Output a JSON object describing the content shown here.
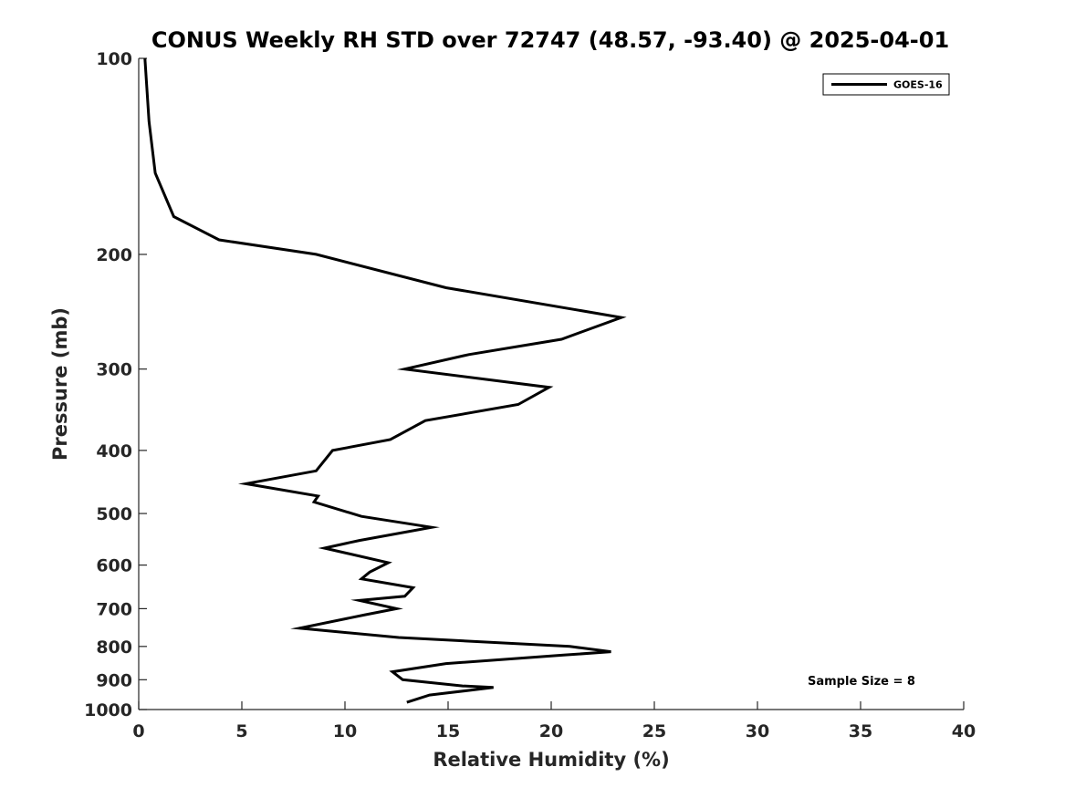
{
  "chart_data": {
    "type": "line",
    "title": "CONUS Weekly RH STD over 72747 (48.57, -93.40) @ 2025-04-01",
    "xlabel": "Relative Humidity (%)",
    "ylabel": "Pressure (mb)",
    "xlim": [
      0,
      40
    ],
    "ylim": [
      100,
      1000
    ],
    "y_scale": "log",
    "y_inverted": true,
    "x_ticks": [
      "0",
      "5",
      "10",
      "15",
      "20",
      "25",
      "30",
      "35",
      "40"
    ],
    "y_ticks": [
      "100",
      "200",
      "300",
      "400",
      "500",
      "600",
      "700",
      "800",
      "900",
      "1000"
    ],
    "grid": false,
    "legend_position": "top-right",
    "series": [
      {
        "name": "GOES-16",
        "color": "#000000",
        "x": [
          0.3,
          0.5,
          0.8,
          1.7,
          3.9,
          8.6,
          14.9,
          23.4,
          20.5,
          16.0,
          12.9,
          19.9,
          18.4,
          13.9,
          12.2,
          9.4,
          8.6,
          5.2,
          8.7,
          8.5,
          10.8,
          14.2,
          10.7,
          9.0,
          12.1,
          11.2,
          10.8,
          13.3,
          12.9,
          10.7,
          12.5,
          11.0,
          7.8,
          12.6,
          20.9,
          22.9,
          20.6,
          14.9,
          12.3,
          12.8,
          15.7,
          17.2,
          14.1,
          13.0
        ],
        "y": [
          100,
          125,
          150,
          175,
          190,
          200,
          225,
          250,
          270,
          285,
          300,
          320,
          340,
          360,
          385,
          400,
          430,
          450,
          470,
          480,
          505,
          525,
          550,
          565,
          595,
          615,
          630,
          650,
          670,
          680,
          700,
          715,
          750,
          775,
          800,
          815,
          825,
          850,
          875,
          900,
          920,
          925,
          950,
          975
        ]
      }
    ],
    "annotations": [
      "Sample Size = 8"
    ]
  }
}
